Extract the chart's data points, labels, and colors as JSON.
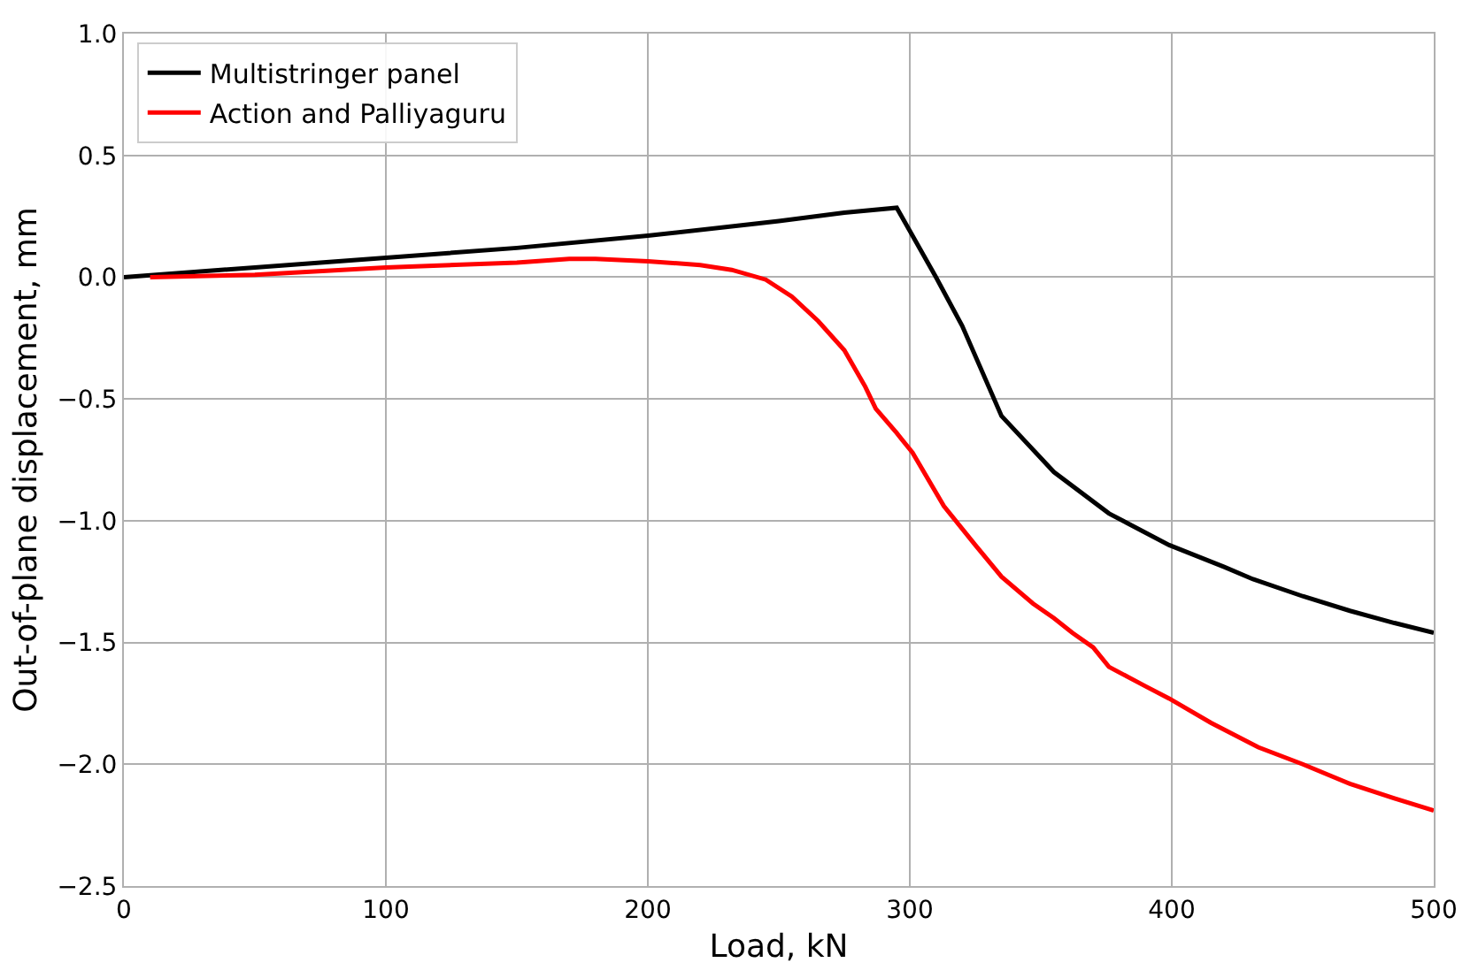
{
  "chart_data": {
    "type": "line",
    "xlabel": "Load, kN",
    "ylabel": "Out-of-plane displacement, mm",
    "xlim": [
      0,
      500
    ],
    "xticks": [
      0,
      100,
      200,
      300,
      400,
      500
    ],
    "ylim": [
      -2.5,
      1.0
    ],
    "yticks": [
      {
        "value": -2.5,
        "label": "−2.5"
      },
      {
        "value": -2.0,
        "label": "−2.0"
      },
      {
        "value": -1.5,
        "label": "−1.5"
      },
      {
        "value": -1.0,
        "label": "−1.0"
      },
      {
        "value": -0.5,
        "label": "−0.5"
      },
      {
        "value": 0.0,
        "label": "0.0"
      },
      {
        "value": 0.5,
        "label": "0.5"
      },
      {
        "value": 1.0,
        "label": "1.0"
      }
    ],
    "grid": true,
    "legend": "top left",
    "marker": "none",
    "line_style": "solid",
    "series": [
      {
        "name": "Multistringer panel",
        "color": "#000000",
        "x": [
          0,
          50,
          100,
          150,
          200,
          250,
          275,
          295,
          310,
          320,
          335,
          355,
          376,
          399,
          420,
          431,
          450,
          468,
          485,
          500
        ],
        "values": [
          0,
          0.04,
          0.08,
          0.12,
          0.17,
          0.23,
          0.265,
          0.285,
          0.0,
          -0.2,
          -0.57,
          -0.8,
          -0.97,
          -1.1,
          -1.19,
          -1.24,
          -1.31,
          -1.37,
          -1.42,
          -1.46
        ]
      },
      {
        "name": "Action and Palliyaguru",
        "color": "#ff0000",
        "x": [
          10,
          50,
          100,
          150,
          170,
          180,
          200,
          220,
          232,
          245,
          255,
          265,
          275,
          283,
          287,
          295,
          301,
          313,
          325,
          335,
          347,
          355,
          362,
          370,
          376,
          390,
          399,
          415,
          433,
          450,
          468,
          485,
          500
        ],
        "values": [
          0,
          0.01,
          0.04,
          0.06,
          0.075,
          0.075,
          0.065,
          0.05,
          0.03,
          -0.01,
          -0.08,
          -0.18,
          -0.3,
          -0.45,
          -0.54,
          -0.64,
          -0.72,
          -0.94,
          -1.1,
          -1.23,
          -1.34,
          -1.4,
          -1.46,
          -1.52,
          -1.6,
          -1.68,
          -1.73,
          -1.83,
          -1.93,
          -2.0,
          -2.08,
          -2.14,
          -2.19
        ]
      }
    ]
  }
}
